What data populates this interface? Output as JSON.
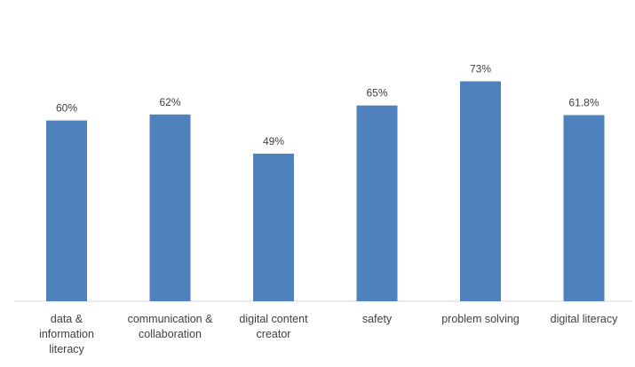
{
  "chart_data": {
    "type": "bar",
    "title": "",
    "xlabel": "",
    "ylabel": "",
    "ylim": [
      0,
      100
    ],
    "grid": false,
    "legend": "none",
    "bar_color": "#4f81bd",
    "categories": [
      "data & information literacy",
      "communication & collaboration",
      "digital content creator",
      "safety",
      "problem solving",
      "digital literacy"
    ],
    "category_lines": [
      [
        "data &",
        "information",
        "literacy"
      ],
      [
        "communication &",
        "collaboration"
      ],
      [
        "digital content",
        "creator"
      ],
      [
        "safety"
      ],
      [
        "problem solving"
      ],
      [
        "digital literacy"
      ]
    ],
    "values": [
      60,
      62,
      49,
      65,
      73,
      61.8
    ],
    "data_labels": [
      "60%",
      "62%",
      "49%",
      "65%",
      "73%",
      "61.8%"
    ]
  }
}
